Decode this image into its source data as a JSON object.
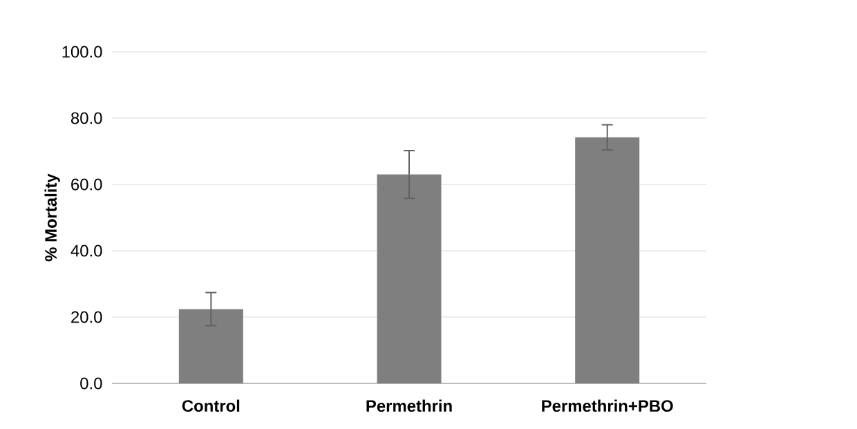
{
  "chart_data": {
    "type": "bar",
    "ylabel": "% Mortality",
    "categories": [
      "Control",
      "Permethrin",
      "Permethrin+PBO"
    ],
    "values": [
      22.4,
      63.0,
      74.2
    ],
    "errors": [
      5.0,
      7.2,
      3.8
    ],
    "color": "#7f7f7f",
    "ylim": [
      0,
      100
    ],
    "yticks": [
      {
        "value": 0,
        "label": "0.0"
      },
      {
        "value": 20,
        "label": "20.0"
      },
      {
        "value": 40,
        "label": "40.0"
      },
      {
        "value": 60,
        "label": "60.0"
      },
      {
        "value": 80,
        "label": "80.0"
      },
      {
        "value": 100,
        "label": "100.0"
      }
    ],
    "grid": "y"
  }
}
